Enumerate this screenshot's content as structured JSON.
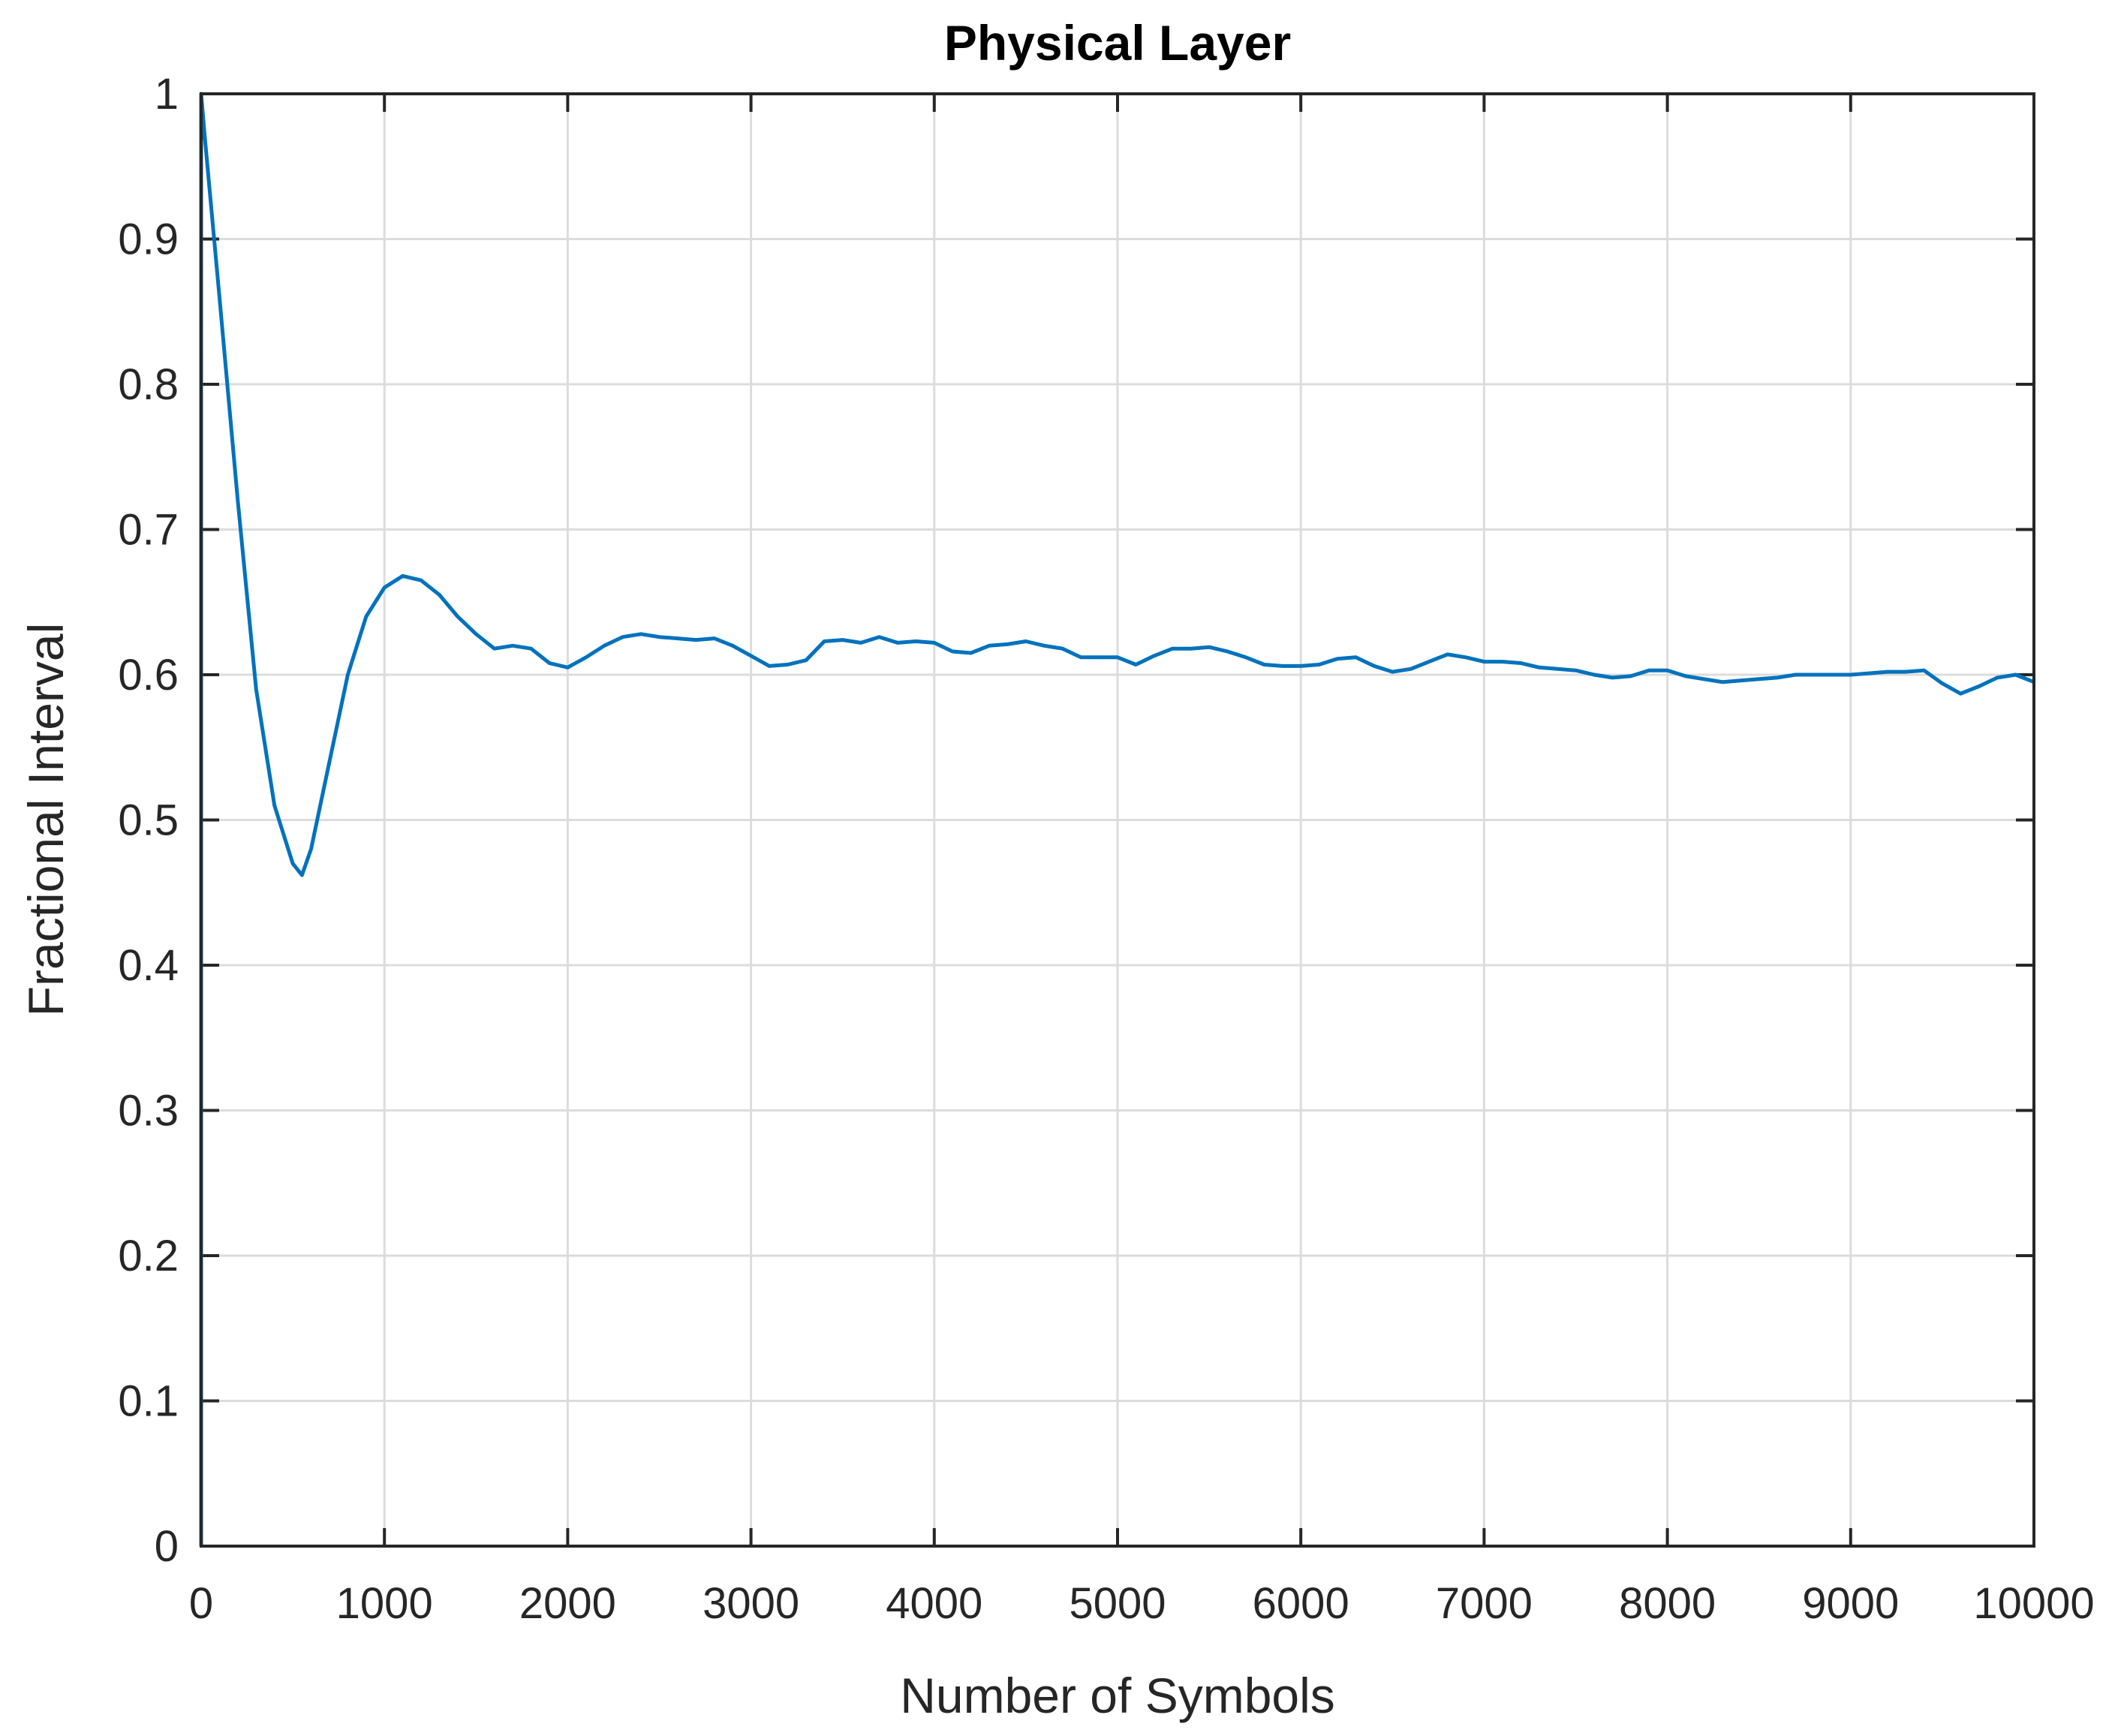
{
  "chart_data": {
    "type": "line",
    "title": "Physical Layer",
    "xlabel": "Number of Symbols",
    "ylabel": "Fractional Interval",
    "xlim": [
      0,
      10000
    ],
    "ylim": [
      0,
      1
    ],
    "xticks": [
      0,
      1000,
      2000,
      3000,
      4000,
      5000,
      6000,
      7000,
      8000,
      9000,
      10000
    ],
    "xtick_labels": [
      "0",
      "1000",
      "2000",
      "3000",
      "4000",
      "5000",
      "6000",
      "7000",
      "8000",
      "9000",
      "10000"
    ],
    "yticks": [
      0,
      0.1,
      0.2,
      0.3,
      0.4,
      0.5,
      0.6,
      0.7,
      0.8,
      0.9,
      1
    ],
    "ytick_labels": [
      "0",
      "0.1",
      "0.2",
      "0.3",
      "0.4",
      "0.5",
      "0.6",
      "0.7",
      "0.8",
      "0.9",
      "1"
    ],
    "grid": true,
    "line_color": "#0072BD",
    "series": [
      {
        "x": [
          0,
          0,
          20,
          100,
          200,
          300,
          400,
          500,
          550,
          600,
          700,
          800,
          900,
          1000,
          1100,
          1200,
          1300,
          1400,
          1500,
          1600,
          1700,
          1800,
          1900,
          2000,
          2100,
          2200,
          2300,
          2400,
          2500,
          2600,
          2700,
          2800,
          2900,
          3000,
          3100,
          3200,
          3300,
          3400,
          3500,
          3600,
          3700,
          3800,
          3900,
          4000,
          4100,
          4200,
          4300,
          4400,
          4500,
          4600,
          4700,
          4800,
          4900,
          5000,
          5100,
          5200,
          5300,
          5400,
          5500,
          5600,
          5700,
          5800,
          5900,
          6000,
          6100,
          6200,
          6300,
          6400,
          6500,
          6600,
          6700,
          6800,
          6900,
          7000,
          7100,
          7200,
          7300,
          7400,
          7500,
          7600,
          7700,
          7800,
          7900,
          8000,
          8100,
          8200,
          8300,
          8400,
          8500,
          8600,
          8700,
          8800,
          8900,
          9000,
          9100,
          9200,
          9300,
          9400,
          9500,
          9600,
          9700,
          9800,
          9900,
          10000
        ],
        "y": [
          0,
          1.0,
          0.97,
          0.86,
          0.72,
          0.59,
          0.51,
          0.47,
          0.462,
          0.48,
          0.54,
          0.6,
          0.64,
          0.66,
          0.668,
          0.665,
          0.655,
          0.64,
          0.628,
          0.618,
          0.62,
          0.618,
          0.608,
          0.605,
          0.612,
          0.62,
          0.626,
          0.628,
          0.626,
          0.625,
          0.624,
          0.625,
          0.62,
          0.613,
          0.606,
          0.607,
          0.61,
          0.623,
          0.624,
          0.622,
          0.626,
          0.622,
          0.623,
          0.622,
          0.616,
          0.615,
          0.62,
          0.621,
          0.623,
          0.62,
          0.618,
          0.612,
          0.612,
          0.612,
          0.607,
          0.613,
          0.618,
          0.618,
          0.619,
          0.616,
          0.612,
          0.607,
          0.606,
          0.606,
          0.607,
          0.611,
          0.612,
          0.606,
          0.602,
          0.604,
          0.609,
          0.614,
          0.612,
          0.609,
          0.609,
          0.608,
          0.605,
          0.604,
          0.603,
          0.6,
          0.598,
          0.599,
          0.603,
          0.603,
          0.599,
          0.597,
          0.595,
          0.596,
          0.597,
          0.598,
          0.6,
          0.6,
          0.6,
          0.6,
          0.601,
          0.602,
          0.602,
          0.603,
          0.594,
          0.587,
          0.592,
          0.598,
          0.6,
          0.595
        ]
      }
    ]
  }
}
